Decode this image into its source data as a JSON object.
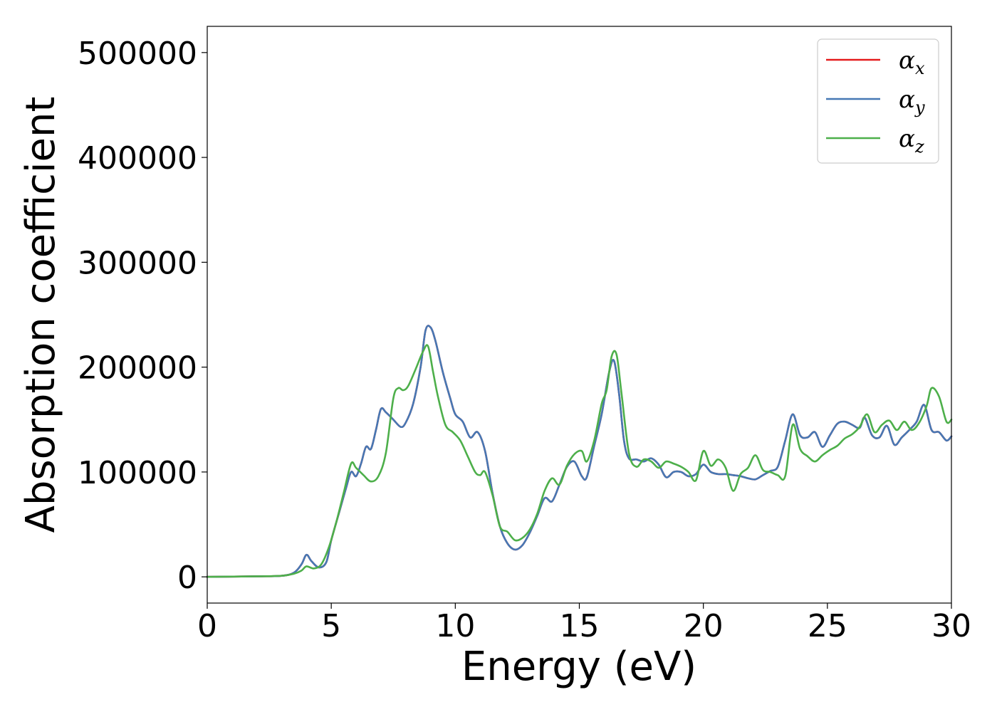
{
  "chart_data": {
    "type": "line",
    "title": "",
    "xlabel": "Energy (eV)",
    "ylabel": "Absorption coefficient",
    "xlim": [
      0,
      30
    ],
    "ylim": [
      -25000,
      525000
    ],
    "xticks": [
      0,
      5,
      10,
      15,
      20,
      25,
      30
    ],
    "xtick_labels": [
      "0",
      "5",
      "10",
      "15",
      "20",
      "25",
      "30"
    ],
    "yticks": [
      0,
      100000,
      200000,
      300000,
      400000,
      500000
    ],
    "ytick_labels": [
      "0",
      "100000",
      "200000",
      "300000",
      "400000",
      "500000"
    ],
    "grid": false,
    "legend_position": "top-right",
    "series": [
      {
        "name": "αx",
        "symbol": "α",
        "subscript": "x",
        "color": "#e41a1c",
        "x": [
          0,
          2,
          3,
          3.5,
          3.8,
          4.0,
          4.2,
          4.5,
          4.8,
          5.0,
          5.3,
          5.6,
          5.8,
          6.0,
          6.2,
          6.4,
          6.6,
          6.8,
          7.0,
          7.2,
          7.5,
          7.8,
          8.0,
          8.3,
          8.6,
          8.8,
          9.0,
          9.2,
          9.5,
          9.8,
          10.0,
          10.3,
          10.6,
          10.9,
          11.2,
          11.5,
          11.8,
          12.1,
          12.4,
          12.7,
          13.0,
          13.3,
          13.6,
          13.9,
          14.2,
          14.5,
          14.8,
          15.1,
          15.3,
          15.6,
          15.9,
          16.2,
          16.4,
          16.6,
          16.8,
          17.0,
          17.3,
          17.6,
          17.9,
          18.2,
          18.5,
          18.8,
          19.1,
          19.4,
          19.7,
          20.0,
          20.3,
          20.6,
          20.9,
          21.2,
          21.5,
          21.8,
          22.1,
          22.4,
          22.7,
          23.0,
          23.3,
          23.6,
          23.9,
          24.2,
          24.5,
          24.8,
          25.1,
          25.4,
          25.7,
          26.0,
          26.3,
          26.5,
          26.8,
          27.1,
          27.4,
          27.7,
          28.0,
          28.3,
          28.6,
          28.9,
          29.2,
          29.5,
          29.8,
          30.0
        ],
        "y": [
          0,
          500,
          1000,
          4000,
          12000,
          21000,
          15000,
          9000,
          14000,
          35000,
          60000,
          85000,
          100000,
          96000,
          108000,
          124000,
          122000,
          140000,
          160000,
          157000,
          150000,
          143000,
          147000,
          165000,
          200000,
          235000,
          238000,
          225000,
          195000,
          170000,
          155000,
          148000,
          133000,
          138000,
          120000,
          80000,
          48000,
          32000,
          26000,
          30000,
          42000,
          58000,
          75000,
          72000,
          88000,
          105000,
          110000,
          96000,
          95000,
          125000,
          155000,
          195000,
          206000,
          175000,
          130000,
          113000,
          112000,
          110000,
          113000,
          107000,
          95000,
          100000,
          100000,
          96000,
          98000,
          107000,
          100000,
          98000,
          98000,
          97000,
          96000,
          94000,
          93000,
          97000,
          101000,
          105000,
          130000,
          155000,
          135000,
          133000,
          138000,
          124000,
          135000,
          146000,
          148000,
          145000,
          142000,
          152000,
          135000,
          133000,
          144000,
          126000,
          133000,
          140000,
          148000,
          164000,
          140000,
          138000,
          130000,
          134000
        ]
      },
      {
        "name": "αy",
        "symbol": "α",
        "subscript": "y",
        "color": "#4678b4",
        "x": [
          0,
          2,
          3,
          3.5,
          3.8,
          4.0,
          4.2,
          4.5,
          4.8,
          5.0,
          5.3,
          5.6,
          5.8,
          6.0,
          6.2,
          6.4,
          6.6,
          6.8,
          7.0,
          7.2,
          7.5,
          7.8,
          8.0,
          8.3,
          8.6,
          8.8,
          9.0,
          9.2,
          9.5,
          9.8,
          10.0,
          10.3,
          10.6,
          10.9,
          11.2,
          11.5,
          11.8,
          12.1,
          12.4,
          12.7,
          13.0,
          13.3,
          13.6,
          13.9,
          14.2,
          14.5,
          14.8,
          15.1,
          15.3,
          15.6,
          15.9,
          16.2,
          16.4,
          16.6,
          16.8,
          17.0,
          17.3,
          17.6,
          17.9,
          18.2,
          18.5,
          18.8,
          19.1,
          19.4,
          19.7,
          20.0,
          20.3,
          20.6,
          20.9,
          21.2,
          21.5,
          21.8,
          22.1,
          22.4,
          22.7,
          23.0,
          23.3,
          23.6,
          23.9,
          24.2,
          24.5,
          24.8,
          25.1,
          25.4,
          25.7,
          26.0,
          26.3,
          26.5,
          26.8,
          27.1,
          27.4,
          27.7,
          28.0,
          28.3,
          28.6,
          28.9,
          29.2,
          29.5,
          29.8,
          30.0
        ],
        "y": [
          0,
          500,
          1000,
          4000,
          12000,
          21000,
          15000,
          9000,
          14000,
          35000,
          60000,
          85000,
          100000,
          96000,
          108000,
          124000,
          122000,
          140000,
          160000,
          157000,
          150000,
          143000,
          147000,
          165000,
          200000,
          235000,
          238000,
          225000,
          195000,
          170000,
          155000,
          148000,
          133000,
          138000,
          120000,
          80000,
          48000,
          32000,
          26000,
          30000,
          42000,
          58000,
          75000,
          72000,
          88000,
          105000,
          110000,
          96000,
          95000,
          125000,
          155000,
          195000,
          206000,
          175000,
          130000,
          113000,
          112000,
          110000,
          113000,
          107000,
          95000,
          100000,
          100000,
          96000,
          98000,
          107000,
          100000,
          98000,
          98000,
          97000,
          96000,
          94000,
          93000,
          97000,
          101000,
          105000,
          130000,
          155000,
          135000,
          133000,
          138000,
          124000,
          135000,
          146000,
          148000,
          145000,
          142000,
          152000,
          135000,
          133000,
          144000,
          126000,
          133000,
          140000,
          148000,
          164000,
          140000,
          138000,
          130000,
          134000
        ]
      },
      {
        "name": "αz",
        "symbol": "α",
        "subscript": "z",
        "color": "#4daf4a",
        "x": [
          0,
          2,
          3,
          3.5,
          3.8,
          4.0,
          4.3,
          4.6,
          4.9,
          5.2,
          5.5,
          5.8,
          6.0,
          6.3,
          6.6,
          6.9,
          7.2,
          7.5,
          7.7,
          7.9,
          8.1,
          8.4,
          8.7,
          8.9,
          9.1,
          9.3,
          9.6,
          9.9,
          10.2,
          10.5,
          10.8,
          11.0,
          11.2,
          11.5,
          11.8,
          12.1,
          12.4,
          12.7,
          13.0,
          13.3,
          13.6,
          13.9,
          14.2,
          14.5,
          14.8,
          15.1,
          15.3,
          15.6,
          15.9,
          16.1,
          16.3,
          16.5,
          16.7,
          17.0,
          17.3,
          17.6,
          17.9,
          18.2,
          18.5,
          18.8,
          19.1,
          19.4,
          19.7,
          20.0,
          20.3,
          20.6,
          20.9,
          21.2,
          21.5,
          21.8,
          22.1,
          22.4,
          22.7,
          23.0,
          23.3,
          23.6,
          23.9,
          24.2,
          24.5,
          24.8,
          25.1,
          25.4,
          25.7,
          26.0,
          26.3,
          26.6,
          26.9,
          27.2,
          27.5,
          27.8,
          28.1,
          28.4,
          28.7,
          29.0,
          29.2,
          29.5,
          29.8,
          30.0
        ],
        "y": [
          0,
          500,
          1000,
          3000,
          6000,
          10000,
          8000,
          12000,
          28000,
          52000,
          80000,
          108000,
          104000,
          97000,
          91000,
          96000,
          118000,
          170000,
          180000,
          178000,
          182000,
          198000,
          215000,
          220000,
          196000,
          172000,
          145000,
          138000,
          130000,
          115000,
          100000,
          97000,
          100000,
          78000,
          48000,
          43000,
          35000,
          37000,
          45000,
          60000,
          82000,
          94000,
          88000,
          106000,
          117000,
          120000,
          110000,
          130000,
          165000,
          178000,
          210000,
          212000,
          175000,
          118000,
          105000,
          112000,
          110000,
          104000,
          110000,
          108000,
          105000,
          100000,
          92000,
          120000,
          106000,
          112000,
          104000,
          82000,
          98000,
          104000,
          116000,
          102000,
          100000,
          97000,
          96000,
          145000,
          122000,
          115000,
          110000,
          116000,
          121000,
          125000,
          132000,
          136000,
          143000,
          155000,
          138000,
          145000,
          149000,
          140000,
          148000,
          140000,
          147000,
          163000,
          180000,
          172000,
          148000,
          150000
        ]
      }
    ]
  }
}
